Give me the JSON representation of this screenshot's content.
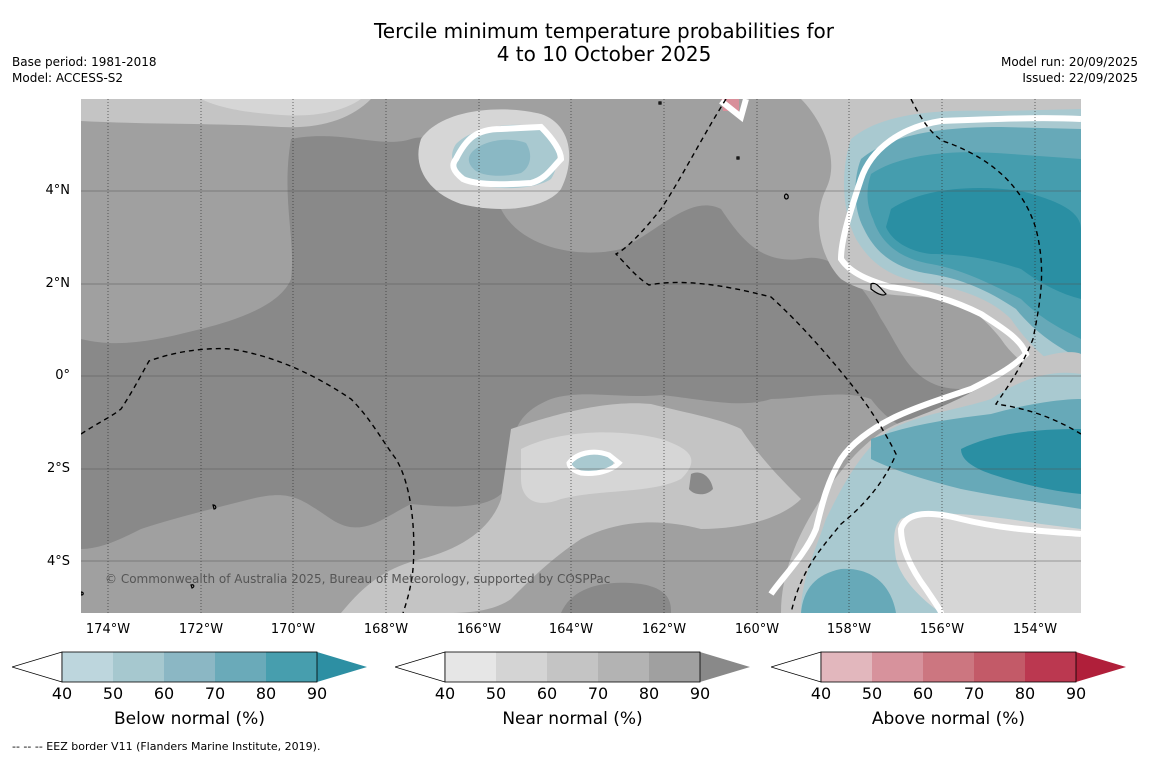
{
  "title": {
    "line1": "Tercile minimum temperature probabilities for",
    "line2": "4 to 10 October 2025"
  },
  "meta_left": {
    "base_period": "Base period: 1981-2018",
    "model": "Model: ACCESS-S2"
  },
  "meta_right": {
    "model_run": "Model run: 20/09/2025",
    "issued": "Issued: 22/09/2025"
  },
  "map": {
    "lat_labels": [
      "4°N",
      "2°N",
      "0°",
      "2°S",
      "4°S"
    ],
    "lon_labels": [
      "174°W",
      "172°W",
      "170°W",
      "168°W",
      "166°W",
      "164°W",
      "162°W",
      "160°W",
      "158°W",
      "156°W",
      "154°W"
    ],
    "copyright": "© Commonwealth of Australia 2025, Bureau of Meteorology, supported by COSPPac",
    "colors": {
      "near40": "#a0a0a0",
      "near50": "#898989",
      "near_light": "#c4c4c4",
      "near_lighter": "#d6d6d6",
      "below50": "#a9c9d0",
      "below60": "#8ab8c4",
      "below70": "#67a9b8",
      "below80": "#459dae",
      "below90": "#2a8fa3",
      "above50": "#d88f9a"
    }
  },
  "colorbars": [
    {
      "title": "Below normal (%)",
      "ticks": [
        "40",
        "50",
        "60",
        "70",
        "80",
        "90"
      ],
      "colors": [
        "#ffffff",
        "#bdd6dd",
        "#a6c8cf",
        "#8bb7c4",
        "#6aaab9",
        "#479eae",
        "#2d8fa3"
      ]
    },
    {
      "title": "Near normal (%)",
      "ticks": [
        "40",
        "50",
        "60",
        "70",
        "80",
        "90"
      ],
      "colors": [
        "#ffffff",
        "#e6e6e6",
        "#d4d4d4",
        "#c4c4c4",
        "#b3b3b3",
        "#a0a0a0",
        "#898989"
      ]
    },
    {
      "title": "Above normal (%)",
      "ticks": [
        "40",
        "50",
        "60",
        "70",
        "80",
        "90"
      ],
      "colors": [
        "#ffffff",
        "#e2b7bd",
        "#d7929c",
        "#cc7680",
        "#c35a68",
        "#bb3850",
        "#b01f3a"
      ]
    }
  ],
  "footnote": "--  --  -- EEZ border V11 (Flanders Marine Institute, 2019)."
}
